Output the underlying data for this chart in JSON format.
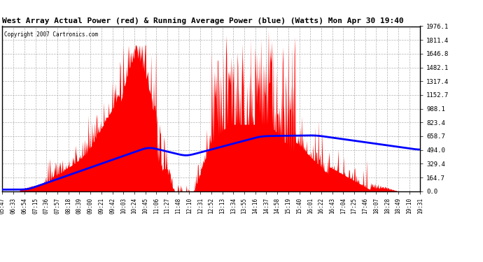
{
  "title": "West Array Actual Power (red) & Running Average Power (blue) (Watts) Mon Apr 30 19:40",
  "copyright": "Copyright 2007 Cartronics.com",
  "ymax": 1976.1,
  "ymin": 0.0,
  "ytick_values": [
    0.0,
    164.7,
    329.4,
    494.0,
    658.7,
    823.4,
    988.1,
    1152.7,
    1317.4,
    1482.1,
    1646.8,
    1811.4,
    1976.1
  ],
  "ytick_labels": [
    "0.0",
    "164.7",
    "329.4",
    "494.0",
    "658.7",
    "823.4",
    "988.1",
    "1152.7",
    "1317.4",
    "1482.1",
    "1646.8",
    "1811.4",
    "1976.1"
  ],
  "background_color": "#ffffff",
  "grid_color": "#aaaaaa",
  "red_color": "#ff0000",
  "blue_color": "#0000ff",
  "x_labels": [
    "05:47",
    "06:33",
    "06:54",
    "07:15",
    "07:36",
    "07:57",
    "08:18",
    "08:39",
    "09:00",
    "09:21",
    "09:42",
    "10:03",
    "10:24",
    "10:45",
    "11:06",
    "11:27",
    "11:48",
    "12:10",
    "12:31",
    "12:52",
    "13:13",
    "13:34",
    "13:55",
    "14:16",
    "14:37",
    "14:58",
    "15:19",
    "15:40",
    "16:01",
    "16:22",
    "16:43",
    "17:04",
    "17:25",
    "17:46",
    "18:07",
    "18:28",
    "18:49",
    "19:10",
    "19:31"
  ],
  "figsize": [
    6.9,
    3.75
  ],
  "dpi": 100
}
